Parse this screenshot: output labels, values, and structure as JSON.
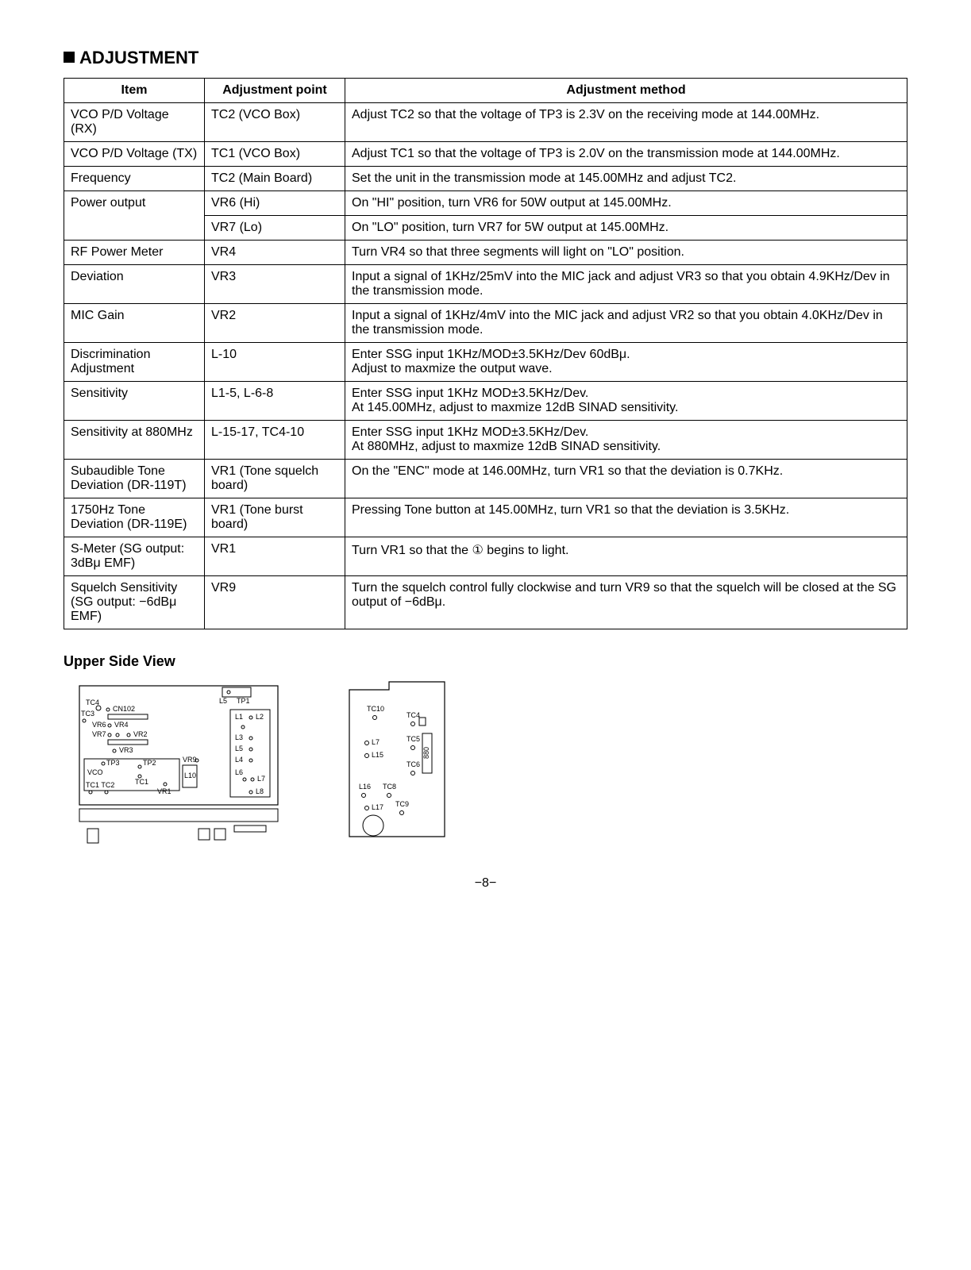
{
  "title": "ADJUSTMENT",
  "headers": {
    "item": "Item",
    "point": "Adjustment point",
    "method": "Adjustment method"
  },
  "rows": [
    {
      "item": "VCO P/D Voltage (RX)",
      "point": "TC2 (VCO Box)",
      "method": "Adjust TC2 so that the voltage of TP3 is 2.3V on the receiving mode at 144.00MHz."
    },
    {
      "item": "VCO P/D Voltage (TX)",
      "point": "TC1 (VCO Box)",
      "method": "Adjust TC1 so that the voltage of TP3 is 2.0V on the transmission mode at 144.00MHz."
    },
    {
      "item": "Frequency",
      "point": "TC2 (Main Board)",
      "method": "Set the unit in the transmission mode at 145.00MHz and adjust TC2."
    },
    {
      "item": "Power output",
      "point": "VR6 (Hi)",
      "method": "On \"HI\" position, turn VR6 for 50W output at 145.00MHz.",
      "rowspan_item": 2
    },
    {
      "item": "",
      "point": "VR7 (Lo)",
      "method": "On \"LO\" position, turn VR7 for 5W output at 145.00MHz.",
      "skip_item": true
    },
    {
      "item": "RF Power Meter",
      "point": "VR4",
      "method": "Turn VR4 so that three segments will light on \"LO\" position."
    },
    {
      "item": "Deviation",
      "point": "VR3",
      "method": "Input a signal of 1KHz/25mV into the MIC jack and adjust VR3 so that you obtain 4.9KHz/Dev in the transmission mode."
    },
    {
      "item": "MIC Gain",
      "point": "VR2",
      "method": "Input a signal of 1KHz/4mV into the MIC jack and adjust VR2 so that you obtain 4.0KHz/Dev in the transmission mode."
    },
    {
      "item": "Discrimination Adjustment",
      "point": "L-10",
      "method": "Enter SSG input 1KHz/MOD±3.5KHz/Dev 60dBμ.\nAdjust to maxmize the output wave."
    },
    {
      "item": "Sensitivity",
      "point": "L1-5, L-6-8",
      "method": "Enter SSG input 1KHz MOD±3.5KHz/Dev.\nAt 145.00MHz, adjust to maxmize 12dB SINAD sensitivity."
    },
    {
      "item": "Sensitivity at 880MHz",
      "point": "L-15-17, TC4-10",
      "method": "Enter SSG input 1KHz MOD±3.5KHz/Dev.\nAt 880MHz, adjust to maxmize 12dB SINAD sensitivity."
    },
    {
      "item": "Subaudible Tone Deviation (DR-119T)",
      "point": "VR1 (Tone squelch board)",
      "method": "On the \"ENC\" mode at 146.00MHz, turn VR1 so that the deviation is 0.7KHz."
    },
    {
      "item": "1750Hz Tone Deviation (DR-119E)",
      "point": "VR1 (Tone burst board)",
      "method": "Pressing Tone button at 145.00MHz, turn VR1 so that the deviation is 3.5KHz."
    },
    {
      "item": "S-Meter (SG output: 3dBμ EMF)",
      "point": "VR1",
      "method": "Turn VR1 so that the ① begins to light."
    },
    {
      "item": "Squelch Sensitivity (SG output: −6dBμ EMF)",
      "point": "VR9",
      "method": "Turn the squelch control fully clockwise and turn VR9 so that the squelch will be closed at the SG output of −6dBμ."
    }
  ],
  "upper_side_view": "Upper Side View",
  "page_number": "−8−",
  "diagram1": {
    "labels": [
      "TC4",
      "TC3",
      "CN102",
      "VR6",
      "VR4",
      "VR7",
      "VR2",
      "VR3",
      "TP3",
      "VCO",
      "TC1",
      "TC2",
      "TP2",
      "VR1",
      "L10",
      "VR9",
      "L5",
      "TP1",
      "L1",
      "L2",
      "L3",
      "L5",
      "L4",
      "L6",
      "L7",
      "L8"
    ]
  },
  "diagram2": {
    "labels": [
      "TC10",
      "TC4",
      "L7",
      "TC5",
      "L15",
      "TC6",
      "L16",
      "TC8",
      "L17",
      "TC9",
      "880"
    ]
  }
}
